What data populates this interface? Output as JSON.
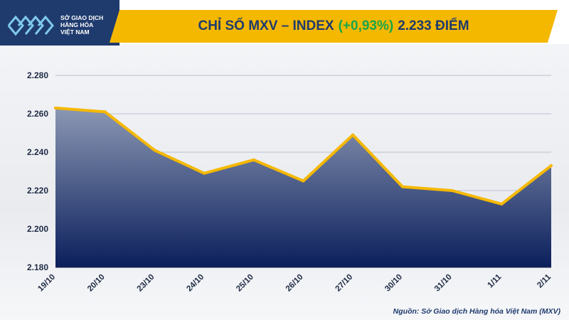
{
  "header": {
    "logo_text": [
      "SỞ GIAO DỊCH",
      "HÀNG HÓA",
      "VIỆT NAM"
    ],
    "title_main": "CHỈ SỐ MXV – INDEX",
    "title_change": "(+0,93%)",
    "title_value": "2.233 ĐIỂM"
  },
  "source": "Nguồn: Sở Giao dịch Hàng hóa Việt Nam (MXV)",
  "colors": {
    "brand_navy": "#1f3b6e",
    "title_bar": "#f5b800",
    "change_green": "#1aa64a",
    "line": "#f5b800",
    "area_top": "#8b97b3",
    "area_bottom": "#0b1f5c"
  },
  "chart_data": {
    "type": "area",
    "categories": [
      "19/10",
      "20/10",
      "23/10",
      "24/10",
      "25/10",
      "26/10",
      "27/10",
      "30/10",
      "31/10",
      "1/11",
      "2/11"
    ],
    "values": [
      2263,
      2261,
      2241,
      2229,
      2236,
      2225,
      2249,
      2222,
      2220,
      2213,
      2233
    ],
    "yticks": [
      "2.180",
      "2.200",
      "2.220",
      "2.240",
      "2.260",
      "2.280"
    ],
    "ylim": [
      2180,
      2280
    ],
    "grid": true
  }
}
